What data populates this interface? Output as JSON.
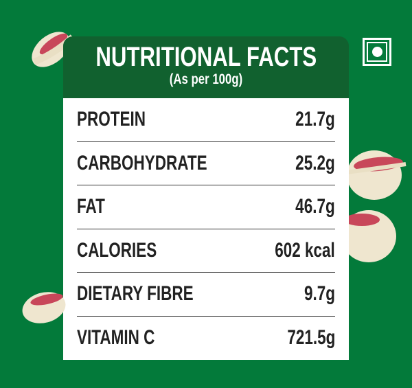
{
  "header": {
    "title": "NUTRITIONAL FACTS",
    "subtitle": "(As per 100g)"
  },
  "rows": [
    {
      "label": "PROTEIN",
      "value": "21.7g"
    },
    {
      "label": "CARBOHYDRATE",
      "value": "25.2g"
    },
    {
      "label": "FAT",
      "value": "46.7g"
    },
    {
      "label": "CALORIES",
      "value": "602 kcal"
    },
    {
      "label": "DIETARY FIBRE",
      "value": "9.7g"
    },
    {
      "label": "VITAMIN C",
      "value": "721.5g"
    }
  ],
  "colors": {
    "background": "#037a3a",
    "header": "#11612f",
    "veg_mark": "#ffffff"
  },
  "icons": {
    "veg": "vegetarian-mark-icon",
    "decor": "pistachio-image"
  }
}
